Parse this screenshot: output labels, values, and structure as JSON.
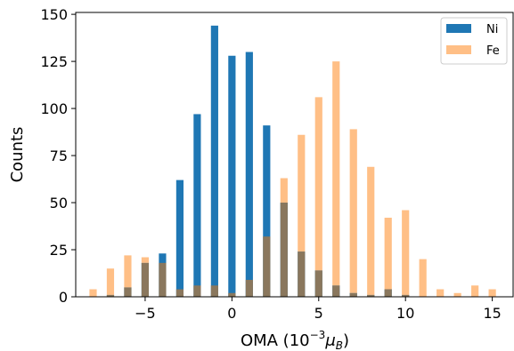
{
  "chart_data": {
    "type": "bar",
    "title": "",
    "xlabel": "OMA (10",
    "xlabel_sup": "−3",
    "xlabel_unit": "μ",
    "xlabel_unit_sub": "B",
    "xlabel_close": ")",
    "ylabel": "Counts",
    "xlim": [
      -9,
      16.2
    ],
    "ylim": [
      0,
      151
    ],
    "xticks": [
      -5,
      0,
      5,
      10,
      15
    ],
    "xtick_labels": [
      "−5",
      "0",
      "5",
      "10",
      "15"
    ],
    "yticks": [
      0,
      25,
      50,
      75,
      100,
      125,
      150
    ],
    "ytick_labels": [
      "0",
      "25",
      "50",
      "75",
      "100",
      "125",
      "150"
    ],
    "legend_position": "top-right",
    "overlap_color": "#8a775d",
    "series": [
      {
        "name": "Ni",
        "color": "#1f77b4",
        "x": [
          -7,
          -6,
          -5,
          -4,
          -3,
          -2,
          -1,
          0,
          1,
          2,
          3,
          4,
          5,
          6,
          7,
          8,
          9,
          10
        ],
        "values": [
          1,
          5,
          18,
          23,
          62,
          97,
          144,
          128,
          130,
          91,
          50,
          24,
          14,
          6,
          2,
          1,
          4,
          1
        ]
      },
      {
        "name": "Fe",
        "color": "#ffbf86",
        "x": [
          -8,
          -7,
          -6,
          -5,
          -4,
          -3,
          -2,
          -1,
          0,
          1,
          2,
          3,
          4,
          5,
          6,
          7,
          8,
          9,
          10,
          11,
          12,
          13,
          14,
          15
        ],
        "values": [
          4,
          15,
          22,
          21,
          18,
          4,
          6,
          6,
          2,
          9,
          32,
          63,
          86,
          106,
          125,
          89,
          69,
          42,
          46,
          20,
          4,
          2,
          6,
          4
        ]
      }
    ]
  }
}
